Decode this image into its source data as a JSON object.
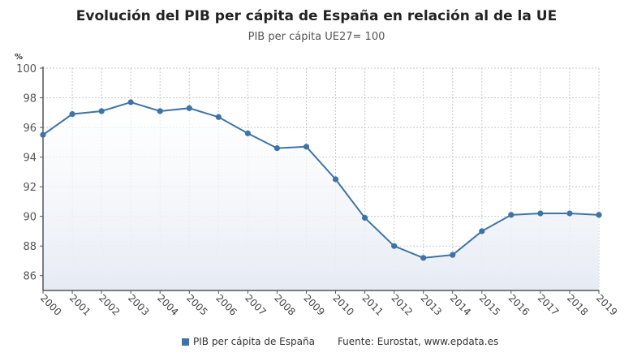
{
  "chart_data": {
    "type": "line",
    "title": "Evolución del PIB per cápita de España en relación al de la UE",
    "subtitle": "PIB per cápita UE27= 100",
    "ylabel": "%",
    "xlabel": "",
    "x": [
      "2000",
      "2001",
      "2002",
      "2003",
      "2004",
      "2005",
      "2006",
      "2007",
      "2008",
      "2009",
      "2010",
      "2011",
      "2012",
      "2013",
      "2014",
      "2015",
      "2016",
      "2017",
      "2018",
      "2019"
    ],
    "series": [
      {
        "name": "PIB per cápita de España",
        "color": "#3f73a4",
        "values": [
          95.5,
          96.9,
          97.1,
          97.7,
          97.1,
          97.3,
          96.7,
          95.6,
          94.6,
          94.7,
          92.5,
          89.9,
          88.0,
          87.2,
          87.4,
          89.0,
          90.1,
          90.2,
          90.2,
          90.1
        ]
      }
    ],
    "ylim": [
      85,
      100
    ],
    "yticks": [
      86,
      88,
      90,
      92,
      94,
      96,
      98,
      100
    ],
    "grid": true,
    "area_fill": true,
    "legend": "bottom-center"
  },
  "source": "Fuente: Eurostat, www.epdata.es"
}
